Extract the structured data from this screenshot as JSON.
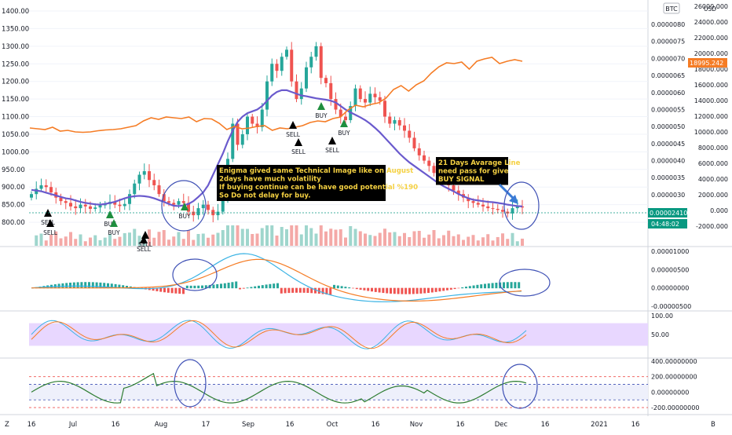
{
  "chart_data": [
    {
      "type": "candlestick",
      "panel": "price",
      "ylim": [
        760,
        1400
      ],
      "left_axis_ticks": [
        800,
        850,
        900,
        950,
        1000,
        1050,
        1100,
        1150,
        1200,
        1250,
        1300,
        1350,
        1400
      ],
      "left_axis_tick_labels": [
        "800.00",
        "850.00",
        "900.00",
        "950.00",
        "1000.00",
        "1050.00",
        "1100.00",
        "1150.00",
        "1200.00",
        "1250.00",
        "1300.00",
        "1350.00",
        "1400.00"
      ],
      "right_axis_ticks": [
        2.5e-06,
        3e-06,
        3.5e-06,
        4e-06,
        4.5e-06,
        5e-06,
        5.5e-06,
        6e-06,
        6.5e-06,
        7e-06,
        7.5e-06,
        8e-06
      ],
      "right_axis_tick_labels": [
        "0.0000025",
        "0.0000030",
        "0.0000035",
        "0.0000040",
        "0.0000045",
        "0.0000050",
        "0.0000055",
        "0.0000060",
        "0.0000065",
        "0.0000070",
        "0.0000075",
        "0.0000080"
      ],
      "btc_axis_ticks": [
        -2000,
        0,
        2000,
        4000,
        6000,
        8000,
        10000,
        12000,
        14000,
        16000,
        18000,
        20000,
        22000,
        24000,
        26000
      ],
      "btc_axis_tick_labels": [
        "-2000.000",
        "0.000",
        "2000.000",
        "4000.000",
        "6000.000",
        "8000.000",
        "10000.000",
        "12000.000",
        "14000.000",
        "16000.000",
        "18000.000",
        "20000.000",
        "22000.000",
        "24000.000",
        "26000.000"
      ],
      "btc_axis_label": "BTC",
      "btc_axis_unit": "USD",
      "last_price_label": "0.00002410",
      "countdown_label": "04:48:02",
      "btc_price_label": "18995.242",
      "candle_closes": [
        880,
        895,
        905,
        900,
        885,
        870,
        860,
        855,
        845,
        840,
        850,
        845,
        838,
        842,
        848,
        852,
        858,
        850,
        846,
        852,
        880,
        910,
        935,
        945,
        920,
        905,
        880,
        860,
        855,
        850,
        860,
        855,
        830,
        820,
        840,
        850,
        835,
        820,
        830,
        870,
        980,
        1080,
        1020,
        1050,
        1100,
        1080,
        1070,
        1120,
        1200,
        1250,
        1230,
        1270,
        1290,
        1200,
        1150,
        1180,
        1240,
        1270,
        1300,
        1210,
        1195,
        1150,
        1120,
        1100,
        1090,
        1130,
        1180,
        1150,
        1140,
        1165,
        1155,
        1145,
        1100,
        1080,
        1090,
        1075,
        1060,
        1040,
        1010,
        990,
        975,
        960,
        940,
        930,
        920,
        905,
        890,
        880,
        870,
        860,
        855,
        850,
        845,
        840,
        838,
        835,
        830,
        825,
        840,
        845,
        842
      ],
      "sma21": [
        892,
        890,
        888,
        884,
        880,
        876,
        872,
        868,
        866,
        862,
        858,
        855,
        853,
        851,
        850,
        852,
        855,
        858,
        863,
        868,
        872,
        874,
        875,
        874,
        872,
        868,
        863,
        858,
        852,
        847,
        846,
        848,
        852,
        860,
        872,
        885,
        905,
        935,
        965,
        995,
        1030,
        1060,
        1085,
        1100,
        1110,
        1115,
        1120,
        1130,
        1145,
        1160,
        1170,
        1175,
        1175,
        1170,
        1165,
        1160,
        1158,
        1155,
        1152,
        1150,
        1148,
        1145,
        1140,
        1130,
        1120,
        1112,
        1105,
        1098,
        1090,
        1080,
        1068,
        1055,
        1040,
        1025,
        1010,
        995,
        982,
        970,
        960,
        950,
        940,
        930,
        920,
        910,
        902,
        895,
        888,
        880,
        874,
        868,
        864,
        862,
        860,
        858,
        857,
        855,
        853,
        850,
        848,
        846,
        845
      ],
      "btc_usd": [
        10500,
        10400,
        10300,
        10600,
        10100,
        10200,
        10000,
        9950,
        10000,
        10150,
        10250,
        10300,
        10400,
        10600,
        10800,
        11400,
        11800,
        11600,
        11900,
        11800,
        11700,
        11900,
        11300,
        11700,
        11650,
        11100,
        10300,
        10700,
        10400,
        10500,
        10700,
        10800,
        10200,
        10500,
        10400,
        10600,
        10800,
        11200,
        11400,
        11300,
        11700,
        11900,
        12800,
        13400,
        13200,
        13500,
        13700,
        14300,
        15400,
        15900,
        15200,
        16000,
        16500,
        17500,
        18300,
        18800,
        18700,
        18900,
        18000,
        19000,
        19300,
        19500,
        18700,
        19000,
        19200,
        19000
      ],
      "signals": [
        {
          "type": "SELL",
          "label": "SELL"
        },
        {
          "type": "BUY",
          "label": "BUY"
        },
        {
          "type": "SELL",
          "label": "SELL"
        },
        {
          "type": "BUY",
          "label": "BUY"
        },
        {
          "type": "SELL",
          "label": "SELL"
        },
        {
          "type": "BUY",
          "label": "BUY"
        },
        {
          "type": "SELL",
          "label": "SELL"
        },
        {
          "type": "BUY",
          "label": "BUY"
        },
        {
          "type": "SELL",
          "label": "SELL"
        },
        {
          "type": "BUY",
          "label": "BUY"
        },
        {
          "type": "SELL",
          "label": "SELL"
        },
        {
          "type": "SELL",
          "label": "SELL"
        }
      ],
      "annotations": [
        "Enigma  gived same Technical Image like on August\n2days have much volatility\nIf buying continue can be have good potential %190\nSo Do not delay for buy.",
        "21 Days Avarage Line\nneed pass for give\nBUY SIGNAL"
      ],
      "colors": {
        "up": "#26a69a",
        "down": "#ef5350",
        "sma": "#6a5acd",
        "btc": "#f57c25",
        "buy_marker": "#1e8e3e",
        "sell_marker": "#000000",
        "annotation_bg": "#000000",
        "annotation_text": "#f5d142",
        "circle": "#3f51b5",
        "last_price_bg": "#089981",
        "volume_up": "#9fd6cd",
        "volume_down": "#f4a9a7"
      }
    },
    {
      "type": "macd",
      "panel": "macd",
      "right_axis_ticks": [
        -5e-06,
        0,
        5e-06,
        1e-05
      ],
      "right_axis_tick_labels": [
        "-0.00000500",
        "0.00000000",
        "0.00000500",
        "0.00001000"
      ]
    },
    {
      "type": "stochastic_rsi",
      "panel": "stoch",
      "ylim": [
        0,
        100
      ],
      "right_axis_ticks": [
        50,
        100
      ],
      "right_axis_tick_labels": [
        "50.00",
        "100.00"
      ],
      "band": [
        20,
        80
      ]
    },
    {
      "type": "cci",
      "panel": "cci",
      "right_axis_ticks": [
        -200,
        0,
        200,
        400
      ],
      "right_axis_tick_labels": [
        "-200.00000000",
        "0.00000000",
        "200.00000000",
        "400.00000000"
      ],
      "levels": [
        200,
        100,
        -100,
        -200
      ]
    }
  ],
  "time_axis": {
    "labels": [
      "16",
      "Jul",
      "16",
      "Aug",
      "17",
      "Sep",
      "16",
      "Oct",
      "16",
      "Nov",
      "16",
      "Dec",
      "16",
      "2021",
      "16"
    ]
  },
  "corner": {
    "left_label": "Z",
    "right_label": "B"
  }
}
